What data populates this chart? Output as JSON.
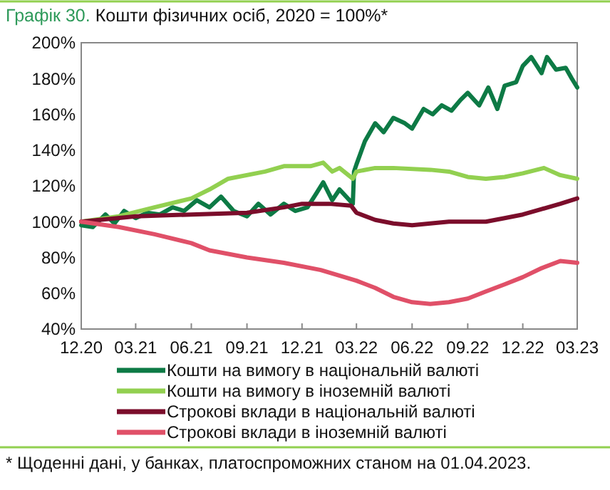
{
  "chart_data": {
    "type": "line",
    "title": "Графік 30. Кошти фізичних осіб, 2020 = 100%*",
    "annotations": [
      "* Щоденні дані, у банках, платоспроможних станом на 01.04.2023."
    ],
    "xlim": [
      "2020-12-01",
      "2023-03-01"
    ],
    "xticks": [
      {
        "value": "2020-12-01",
        "label": "12.20"
      },
      {
        "value": "2021-03-01",
        "label": "03.21"
      },
      {
        "value": "2021-06-01",
        "label": "06.21"
      },
      {
        "value": "2021-09-01",
        "label": "09.21"
      },
      {
        "value": "2021-12-01",
        "label": "12.21"
      },
      {
        "value": "2022-03-01",
        "label": "03.22"
      },
      {
        "value": "2022-06-01",
        "label": "06.22"
      },
      {
        "value": "2022-09-01",
        "label": "09.22"
      },
      {
        "value": "2022-12-01",
        "label": "12.22"
      },
      {
        "value": "2023-03-01",
        "label": "03.23"
      }
    ],
    "ylim": [
      40,
      200
    ],
    "yticks": [
      {
        "value": 40,
        "label": "40%"
      },
      {
        "value": 60,
        "label": "60%"
      },
      {
        "value": 80,
        "label": "80%"
      },
      {
        "value": 100,
        "label": "100%"
      },
      {
        "value": 120,
        "label": "120%"
      },
      {
        "value": 140,
        "label": "140%"
      },
      {
        "value": 160,
        "label": "160%"
      },
      {
        "value": 180,
        "label": "180%"
      },
      {
        "value": 200,
        "label": "200%"
      }
    ],
    "grid": false,
    "legend": "bottom",
    "marker": "none",
    "line_style": "solid",
    "series": [
      {
        "name": "Кошти на вимогу в національній валюті",
        "color": "#0d7a45",
        "x": [
          "2020-12-01",
          "2020-12-20",
          "2021-01-10",
          "2021-01-25",
          "2021-02-10",
          "2021-03-01",
          "2021-03-20",
          "2021-04-10",
          "2021-05-01",
          "2021-05-20",
          "2021-06-10",
          "2021-07-01",
          "2021-07-20",
          "2021-08-10",
          "2021-09-01",
          "2021-09-20",
          "2021-10-10",
          "2021-11-01",
          "2021-11-20",
          "2021-12-10",
          "2021-12-25",
          "2022-01-05",
          "2022-01-20",
          "2022-02-01",
          "2022-02-23",
          "2022-02-25",
          "2022-03-01",
          "2022-03-15",
          "2022-04-01",
          "2022-04-15",
          "2022-05-01",
          "2022-05-20",
          "2022-06-01",
          "2022-06-20",
          "2022-07-05",
          "2022-07-20",
          "2022-08-05",
          "2022-08-20",
          "2022-09-01",
          "2022-09-20",
          "2022-10-05",
          "2022-10-20",
          "2022-11-01",
          "2022-11-20",
          "2022-12-01",
          "2022-12-15",
          "2023-01-01",
          "2023-01-10",
          "2023-01-25",
          "2023-02-10",
          "2023-02-20",
          "2023-03-01"
        ],
        "values": [
          98,
          97,
          104,
          99,
          106,
          102,
          105,
          104,
          108,
          106,
          112,
          108,
          114,
          106,
          103,
          110,
          104,
          110,
          106,
          108,
          116,
          122,
          112,
          118,
          110,
          128,
          132,
          145,
          155,
          150,
          158,
          155,
          152,
          163,
          160,
          165,
          162,
          168,
          172,
          165,
          175,
          163,
          176,
          178,
          187,
          192,
          183,
          192,
          185,
          186,
          180,
          175
        ]
      },
      {
        "name": "Кошти на вимогу в іноземній валюті",
        "color": "#92d050",
        "x": [
          "2020-12-01",
          "2021-02-01",
          "2021-04-01",
          "2021-06-01",
          "2021-07-01",
          "2021-08-01",
          "2021-10-01",
          "2021-11-01",
          "2021-12-15",
          "2022-01-05",
          "2022-01-20",
          "2022-02-01",
          "2022-02-23",
          "2022-03-01",
          "2022-04-01",
          "2022-05-01",
          "2022-07-01",
          "2022-08-01",
          "2022-09-01",
          "2022-10-01",
          "2022-11-01",
          "2022-12-01",
          "2023-01-05",
          "2023-02-01",
          "2023-03-01"
        ],
        "values": [
          100,
          103,
          108,
          113,
          118,
          124,
          128,
          131,
          131,
          133,
          128,
          130,
          124,
          128,
          130,
          130,
          129,
          128,
          125,
          124,
          125,
          127,
          130,
          126,
          124
        ]
      },
      {
        "name": "Строкові вклади в національній валюті",
        "color": "#7b0d2b",
        "x": [
          "2020-12-01",
          "2021-03-01",
          "2021-06-01",
          "2021-09-01",
          "2021-11-01",
          "2021-12-01",
          "2022-01-15",
          "2022-02-20",
          "2022-03-01",
          "2022-04-01",
          "2022-05-01",
          "2022-06-01",
          "2022-07-01",
          "2022-08-01",
          "2022-09-01",
          "2022-10-01",
          "2022-11-01",
          "2022-12-01",
          "2023-01-01",
          "2023-02-01",
          "2023-03-01"
        ],
        "values": [
          100,
          103,
          104,
          105,
          108,
          110,
          110,
          109,
          105,
          101,
          99,
          98,
          99,
          100,
          100,
          100,
          102,
          104,
          107,
          110,
          113
        ]
      },
      {
        "name": "Строкові вклади в іноземній валюті",
        "color": "#e05068",
        "x": [
          "2020-12-01",
          "2021-02-01",
          "2021-04-01",
          "2021-06-01",
          "2021-07-01",
          "2021-09-01",
          "2021-11-01",
          "2022-01-01",
          "2022-03-01",
          "2022-04-01",
          "2022-05-01",
          "2022-06-01",
          "2022-07-01",
          "2022-08-01",
          "2022-09-01",
          "2022-10-01",
          "2022-11-01",
          "2022-12-01",
          "2023-01-01",
          "2023-02-01",
          "2023-03-01"
        ],
        "values": [
          100,
          97,
          93,
          88,
          84,
          80,
          77,
          73,
          67,
          63,
          58,
          55,
          54,
          55,
          57,
          61,
          65,
          69,
          74,
          78,
          77
        ]
      }
    ]
  }
}
